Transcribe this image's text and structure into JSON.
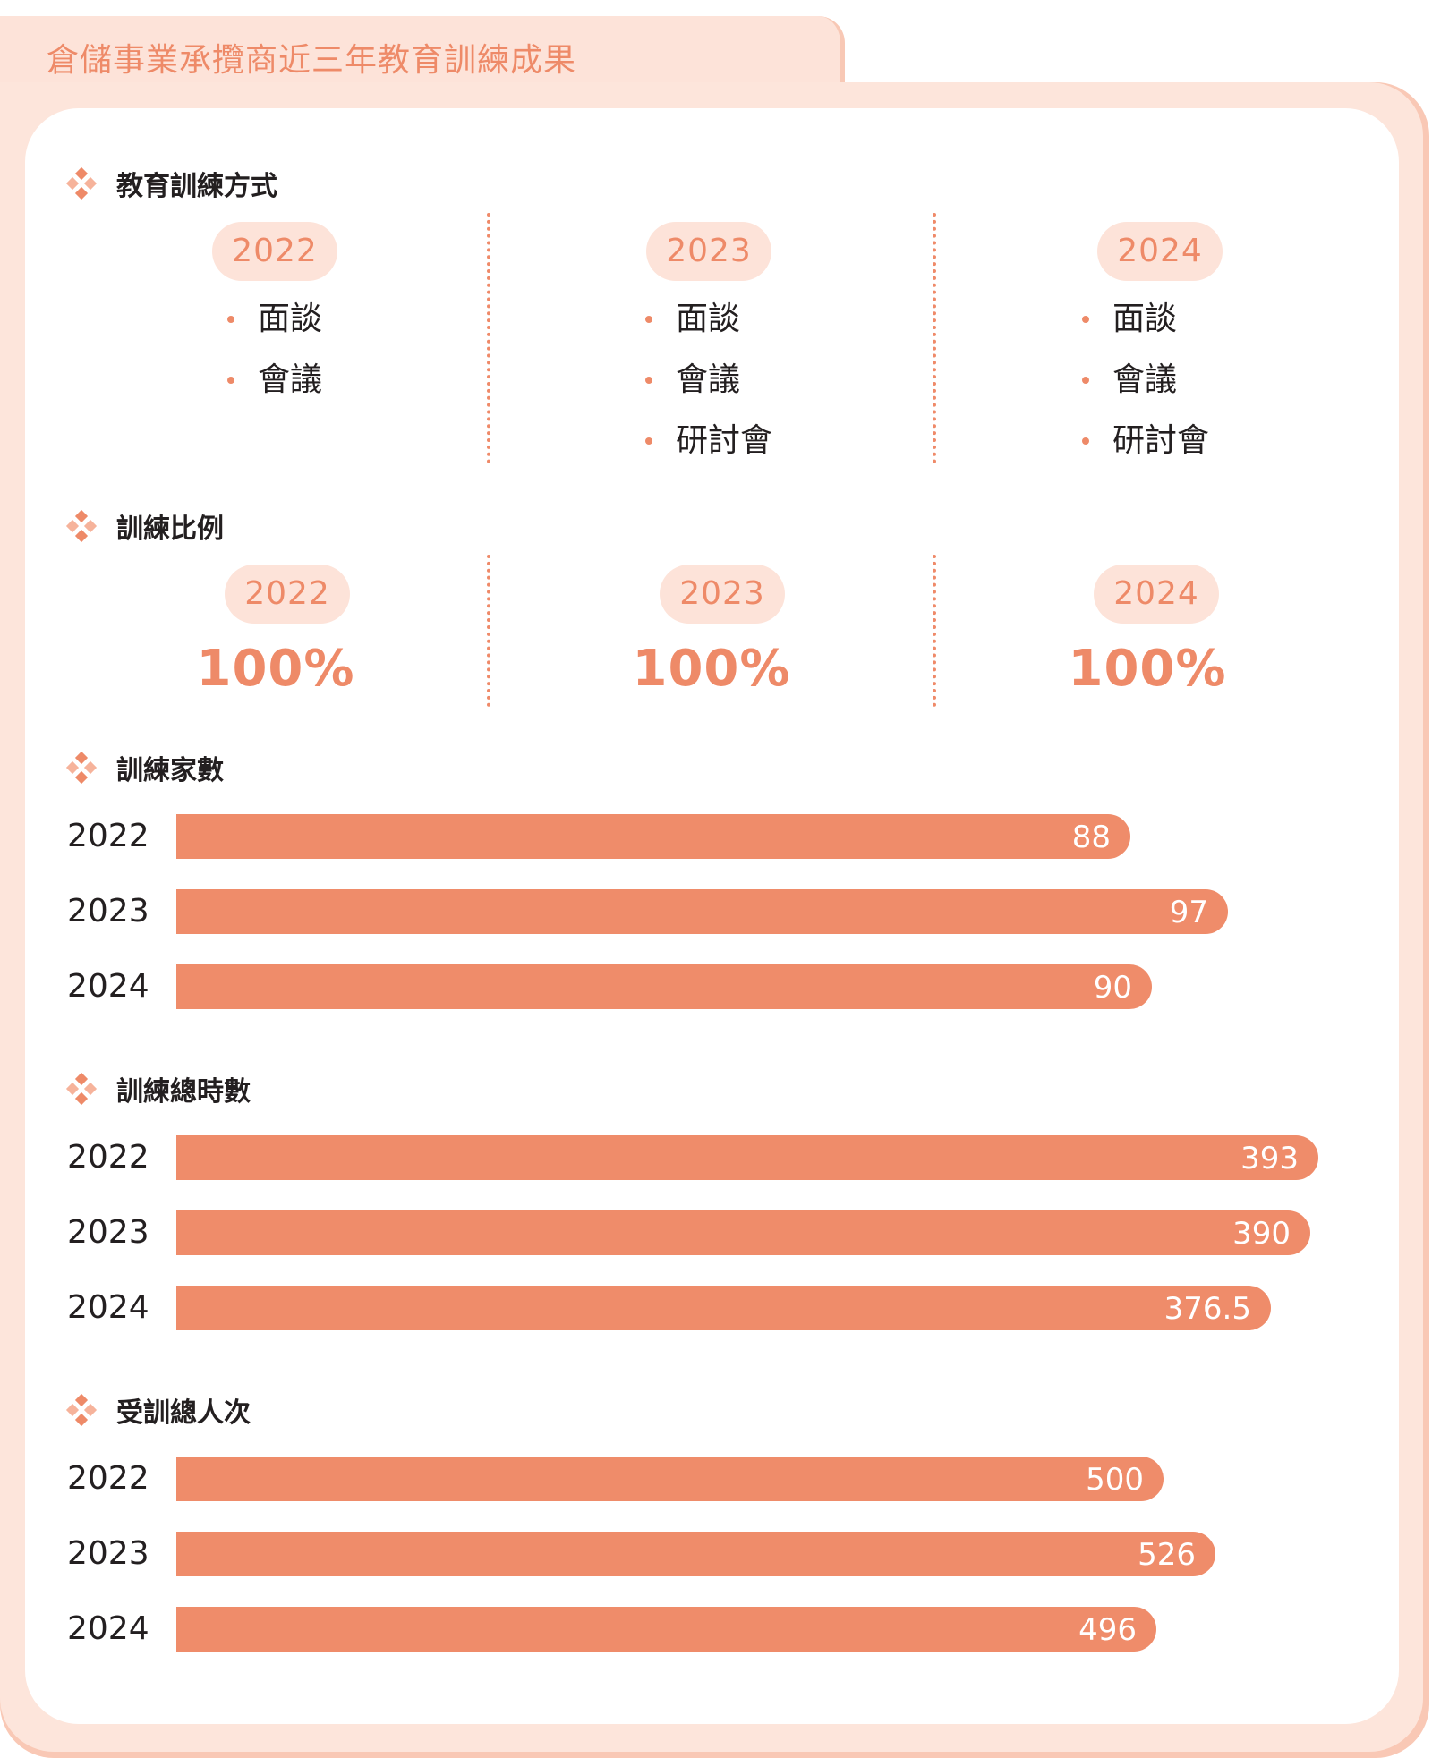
{
  "title": "倉儲事業承攬商近三年教育訓練成果",
  "methods": {
    "heading": "教育訓練方式",
    "columns": [
      {
        "year": "2022",
        "items": [
          "面談",
          "會議"
        ]
      },
      {
        "year": "2023",
        "items": [
          "面談",
          "會議",
          "研討會"
        ]
      },
      {
        "year": "2024",
        "items": [
          "面談",
          "會議",
          "研討會"
        ]
      }
    ]
  },
  "ratio": {
    "heading": "訓練比例",
    "columns": [
      {
        "year": "2022",
        "value": "100%"
      },
      {
        "year": "2023",
        "value": "100%"
      },
      {
        "year": "2024",
        "value": "100%"
      }
    ]
  },
  "chart_data": [
    {
      "type": "bar",
      "orientation": "horizontal",
      "title": "訓練家數",
      "categories": [
        "2022",
        "2023",
        "2024"
      ],
      "values": [
        88,
        97,
        90
      ],
      "value_labels": [
        "88",
        "97",
        "90"
      ],
      "max": 100
    },
    {
      "type": "bar",
      "orientation": "horizontal",
      "title": "訓練總時數",
      "categories": [
        "2022",
        "2023",
        "2024"
      ],
      "values": [
        393,
        390,
        376.5
      ],
      "value_labels": [
        "393",
        "390",
        "376.5"
      ],
      "max": 400
    },
    {
      "type": "bar",
      "orientation": "horizontal",
      "title": "受訓總人次",
      "categories": [
        "2022",
        "2023",
        "2024"
      ],
      "values": [
        500,
        526,
        496
      ],
      "value_labels": [
        "500",
        "526",
        "496"
      ],
      "max": 600
    }
  ],
  "colors": {
    "accent": "#ef8c6a",
    "pill_bg": "#fde3d9",
    "panel_bg": "#fde5db",
    "text": "#231f20"
  }
}
